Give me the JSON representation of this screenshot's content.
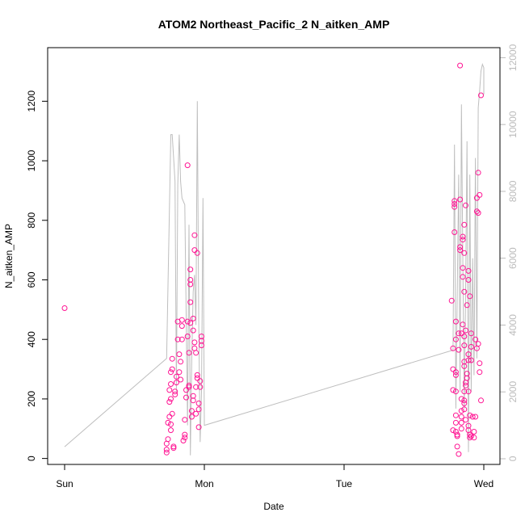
{
  "chart_data": {
    "type": "scatter",
    "title": "ATOM2 Northeast_Pacific_2 N_aitken_AMP",
    "xlabel": "Date",
    "ylabel": "N_aitken_AMP",
    "x_ticks": [
      "Sun",
      "Mon",
      "Tue",
      "Wed"
    ],
    "xlim": [
      0,
      3.1
    ],
    "ylim_left": [
      -20,
      1380
    ],
    "ylim_right": [
      -170,
      12300
    ],
    "left_ticks": [
      0,
      200,
      400,
      600,
      800,
      1000,
      1200
    ],
    "right_ticks": [
      0,
      2000,
      4000,
      6000,
      8000,
      10000,
      12000
    ],
    "grid": false,
    "legend": "none",
    "colors": {
      "points": "#ff1493",
      "line": "#bebebe",
      "right_axis": "#bbbbbb",
      "frame": "#000000"
    },
    "series": [
      {
        "axis": "left",
        "marker": "open-circle",
        "points": [
          [
            0.0,
            505
          ],
          [
            0.73,
            20
          ],
          [
            0.73,
            30
          ],
          [
            0.73,
            50
          ],
          [
            0.74,
            65
          ],
          [
            0.74,
            120
          ],
          [
            0.75,
            140
          ],
          [
            0.75,
            190
          ],
          [
            0.76,
            200
          ],
          [
            0.75,
            230
          ],
          [
            0.76,
            250
          ],
          [
            0.76,
            290
          ],
          [
            0.77,
            300
          ],
          [
            0.77,
            335
          ],
          [
            0.76,
            95
          ],
          [
            0.76,
            115
          ],
          [
            0.77,
            150
          ],
          [
            0.78,
            35
          ],
          [
            0.78,
            40
          ],
          [
            0.79,
            215
          ],
          [
            0.79,
            225
          ],
          [
            0.8,
            255
          ],
          [
            0.8,
            275
          ],
          [
            0.81,
            400
          ],
          [
            0.81,
            460
          ],
          [
            0.82,
            350
          ],
          [
            0.82,
            290
          ],
          [
            0.83,
            265
          ],
          [
            0.83,
            325
          ],
          [
            0.84,
            400
          ],
          [
            0.84,
            445
          ],
          [
            0.84,
            465
          ],
          [
            0.85,
            60
          ],
          [
            0.86,
            70
          ],
          [
            0.86,
            80
          ],
          [
            0.86,
            130
          ],
          [
            0.87,
            205
          ],
          [
            0.87,
            230
          ],
          [
            0.88,
            985
          ],
          [
            0.88,
            460
          ],
          [
            0.88,
            410
          ],
          [
            0.89,
            355
          ],
          [
            0.89,
            240
          ],
          [
            0.89,
            245
          ],
          [
            0.9,
            455
          ],
          [
            0.9,
            525
          ],
          [
            0.9,
            585
          ],
          [
            0.9,
            600
          ],
          [
            0.9,
            635
          ],
          [
            0.91,
            160
          ],
          [
            0.91,
            140
          ],
          [
            0.92,
            195
          ],
          [
            0.92,
            210
          ],
          [
            0.92,
            470
          ],
          [
            0.92,
            430
          ],
          [
            0.93,
            750
          ],
          [
            0.93,
            700
          ],
          [
            0.93,
            390
          ],
          [
            0.93,
            370
          ],
          [
            0.94,
            355
          ],
          [
            0.94,
            240
          ],
          [
            0.94,
            150
          ],
          [
            0.95,
            690
          ],
          [
            0.95,
            280
          ],
          [
            0.95,
            270
          ],
          [
            0.96,
            185
          ],
          [
            0.96,
            165
          ],
          [
            0.96,
            105
          ],
          [
            0.97,
            260
          ],
          [
            0.97,
            240
          ],
          [
            0.98,
            395
          ],
          [
            0.98,
            380
          ],
          [
            0.98,
            410
          ],
          [
            2.77,
            530
          ],
          [
            2.78,
            370
          ],
          [
            2.78,
            300
          ],
          [
            2.78,
            230
          ],
          [
            2.78,
            95
          ],
          [
            2.79,
            865
          ],
          [
            2.79,
            855
          ],
          [
            2.79,
            845
          ],
          [
            2.79,
            760
          ],
          [
            2.8,
            460
          ],
          [
            2.8,
            400
          ],
          [
            2.8,
            290
          ],
          [
            2.8,
            280
          ],
          [
            2.8,
            225
          ],
          [
            2.8,
            145
          ],
          [
            2.8,
            120
          ],
          [
            2.8,
            90
          ],
          [
            2.81,
            80
          ],
          [
            2.81,
            75
          ],
          [
            2.81,
            40
          ],
          [
            2.82,
            15
          ],
          [
            2.82,
            420
          ],
          [
            2.82,
            365
          ],
          [
            2.83,
            1320
          ],
          [
            2.83,
            870
          ],
          [
            2.83,
            710
          ],
          [
            2.83,
            700
          ],
          [
            2.84,
            420
          ],
          [
            2.84,
            200
          ],
          [
            2.84,
            160
          ],
          [
            2.84,
            140
          ],
          [
            2.84,
            120
          ],
          [
            2.84,
            100
          ],
          [
            2.85,
            745
          ],
          [
            2.85,
            735
          ],
          [
            2.85,
            640
          ],
          [
            2.85,
            610
          ],
          [
            2.85,
            450
          ],
          [
            2.86,
            785
          ],
          [
            2.86,
            690
          ],
          [
            2.86,
            560
          ],
          [
            2.86,
            410
          ],
          [
            2.86,
            380
          ],
          [
            2.86,
            325
          ],
          [
            2.86,
            310
          ],
          [
            2.86,
            225
          ],
          [
            2.86,
            195
          ],
          [
            2.86,
            185
          ],
          [
            2.86,
            165
          ],
          [
            2.87,
            850
          ],
          [
            2.87,
            430
          ],
          [
            2.87,
            255
          ],
          [
            2.87,
            245
          ],
          [
            2.87,
            130
          ],
          [
            2.88,
            515
          ],
          [
            2.88,
            285
          ],
          [
            2.88,
            270
          ],
          [
            2.89,
            630
          ],
          [
            2.89,
            600
          ],
          [
            2.89,
            350
          ],
          [
            2.89,
            330
          ],
          [
            2.89,
            225
          ],
          [
            2.89,
            110
          ],
          [
            2.89,
            95
          ],
          [
            2.9,
            545
          ],
          [
            2.9,
            145
          ],
          [
            2.9,
            80
          ],
          [
            2.9,
            70
          ],
          [
            2.91,
            420
          ],
          [
            2.91,
            375
          ],
          [
            2.91,
            330
          ],
          [
            2.91,
            75
          ],
          [
            2.92,
            140
          ],
          [
            2.93,
            70
          ],
          [
            2.93,
            90
          ],
          [
            2.94,
            400
          ],
          [
            2.94,
            140
          ],
          [
            2.95,
            370
          ],
          [
            2.95,
            875
          ],
          [
            2.95,
            830
          ],
          [
            2.96,
            960
          ],
          [
            2.96,
            825
          ],
          [
            2.96,
            385
          ],
          [
            2.97,
            885
          ],
          [
            2.97,
            290
          ],
          [
            2.97,
            320
          ],
          [
            2.98,
            1220
          ],
          [
            2.98,
            195
          ]
        ]
      },
      {
        "axis": "right",
        "style": "line",
        "points": [
          [
            0.0,
            360
          ],
          [
            0.73,
            3000
          ],
          [
            0.76,
            9700
          ],
          [
            0.77,
            9700
          ],
          [
            0.79,
            8300
          ],
          [
            0.8,
            2000
          ],
          [
            0.81,
            8200
          ],
          [
            0.82,
            9700
          ],
          [
            0.83,
            8300
          ],
          [
            0.84,
            7800
          ],
          [
            0.86,
            7600
          ],
          [
            0.88,
            1000
          ],
          [
            0.89,
            7000
          ],
          [
            0.9,
            100
          ],
          [
            0.91,
            3000
          ],
          [
            0.92,
            5000
          ],
          [
            0.93,
            5500
          ],
          [
            0.94,
            4000
          ],
          [
            0.95,
            10700
          ],
          [
            0.96,
            4000
          ],
          [
            0.97,
            500
          ],
          [
            0.98,
            2000
          ],
          [
            0.99,
            7800
          ],
          [
            1.0,
            1000
          ],
          [
            1.0,
            1000
          ],
          [
            2.78,
            3250
          ],
          [
            2.78,
            3250
          ],
          [
            2.79,
            9400
          ],
          [
            2.8,
            1500
          ],
          [
            2.82,
            8500
          ],
          [
            2.83,
            2000
          ],
          [
            2.84,
            10600
          ],
          [
            2.85,
            6000
          ],
          [
            2.86,
            1500
          ],
          [
            2.87,
            5000
          ],
          [
            2.88,
            9500
          ],
          [
            2.89,
            200
          ],
          [
            2.9,
            8500
          ],
          [
            2.91,
            2000
          ],
          [
            2.92,
            6000
          ],
          [
            2.93,
            2500
          ],
          [
            2.94,
            9000
          ],
          [
            2.95,
            3000
          ],
          [
            2.96,
            10500
          ],
          [
            2.97,
            11000
          ],
          [
            2.98,
            11600
          ],
          [
            2.99,
            11800
          ],
          [
            3.0,
            11700
          ],
          [
            3.0,
            10900
          ]
        ]
      }
    ]
  }
}
